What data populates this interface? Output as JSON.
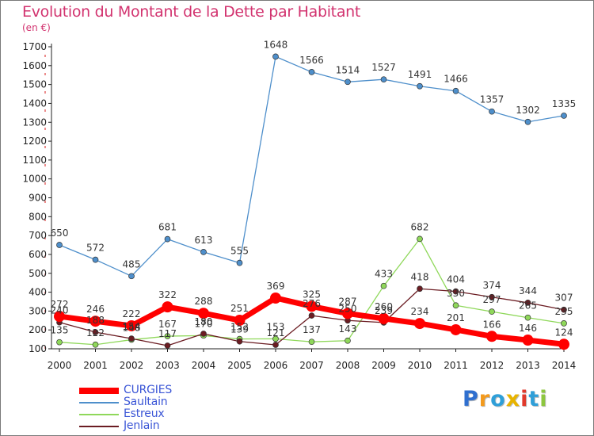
{
  "title": "Evolution du Montant de la Dette par Habitant",
  "subtitle": "(en €)",
  "brand": {
    "letters": [
      {
        "ch": "P",
        "color": "#2f6fcf"
      },
      {
        "ch": "r",
        "color": "#f39a1d"
      },
      {
        "ch": "o",
        "color": "#2f9fd8"
      },
      {
        "ch": "x",
        "color": "#e8b400"
      },
      {
        "ch": "i",
        "color": "#e03a2c"
      },
      {
        "ch": "t",
        "color": "#2f9fd8"
      },
      {
        "ch": "i",
        "color": "#8dc63f"
      }
    ]
  },
  "chart_data": {
    "type": "line",
    "title": "Evolution du Montant de la Dette par Habitant",
    "subtitle": "(en €)",
    "x": [
      "2000",
      "2001",
      "2002",
      "2003",
      "2004",
      "2005",
      "2006",
      "2007",
      "2008",
      "2009",
      "2010",
      "2011",
      "2012",
      "2013",
      "2014"
    ],
    "ylim": [
      100,
      1700
    ],
    "yticks": [
      100,
      200,
      300,
      400,
      500,
      600,
      700,
      800,
      900,
      1000,
      1100,
      1200,
      1300,
      1400,
      1500,
      1600,
      1700
    ],
    "grid": false,
    "legend_position": "bottom-left",
    "series": [
      {
        "name": "CURGIES",
        "color": "#ff0000",
        "values": [
          272,
          246,
          222,
          322,
          288,
          251,
          369,
          325,
          287,
          260,
          234,
          201,
          166,
          146,
          124
        ]
      },
      {
        "name": "Saultain",
        "color": "#4e8fcb",
        "values": [
          650,
          572,
          485,
          681,
          613,
          555,
          1648,
          1566,
          1514,
          1527,
          1491,
          1466,
          1357,
          1302,
          1335
        ]
      },
      {
        "name": "Estreux",
        "color": "#8fd85a",
        "values": [
          135,
          122,
          148,
          167,
          170,
          152,
          153,
          137,
          143,
          433,
          682,
          330,
          297,
          265,
          235
        ]
      },
      {
        "name": "Jenlain",
        "color": "#6b1c22",
        "values": [
          240,
          188,
          154,
          117,
          180,
          139,
          121,
          276,
          250,
          239,
          418,
          404,
          374,
          344,
          307
        ]
      }
    ]
  }
}
